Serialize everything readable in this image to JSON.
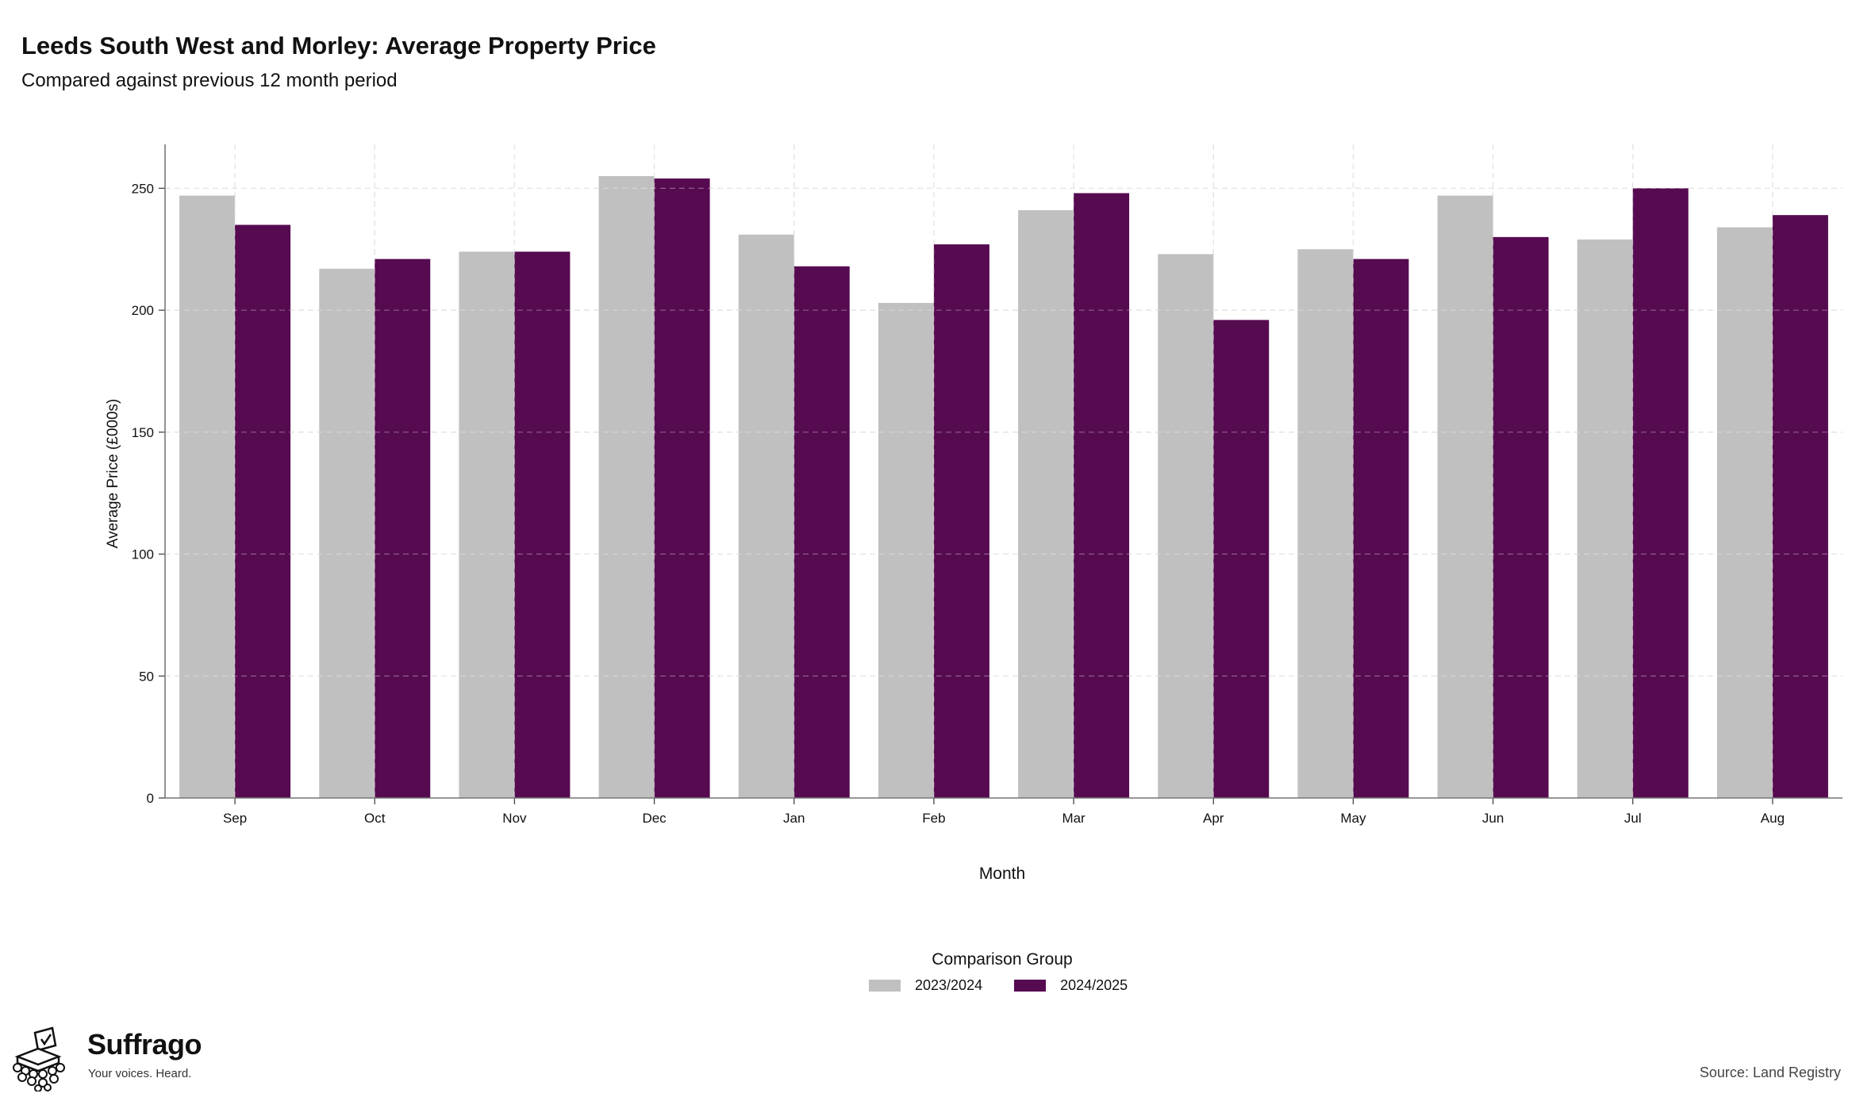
{
  "chart_data": {
    "type": "bar",
    "title": "Leeds South West and Morley: Average Property Price",
    "subtitle": "Compared against previous 12 month period",
    "xlabel": "Month",
    "ylabel": "Average Price (£000s)",
    "categories": [
      "Sep",
      "Oct",
      "Nov",
      "Dec",
      "Jan",
      "Feb",
      "Mar",
      "Apr",
      "May",
      "Jun",
      "Jul",
      "Aug"
    ],
    "series": [
      {
        "name": "2023/2024",
        "color": "#c0c0c0",
        "values": [
          247,
          217,
          224,
          255,
          231,
          203,
          241,
          223,
          225,
          247,
          229,
          234
        ]
      },
      {
        "name": "2024/2025",
        "color": "#560a50",
        "values": [
          235,
          221,
          224,
          254,
          218,
          227,
          248,
          196,
          221,
          230,
          250,
          239
        ]
      }
    ],
    "ylim": [
      0,
      268
    ],
    "yticks": [
      "0",
      "50",
      "100",
      "150",
      "200",
      "250"
    ],
    "grid": true,
    "legend_title": "Comparison Group",
    "legend_position": "bottom"
  },
  "footer": {
    "brand_name": "Suffrago",
    "brand_tagline": "Your voices. Heard.",
    "source": "Source: Land Registry",
    "logo_icon": "ballot-box-icon"
  }
}
